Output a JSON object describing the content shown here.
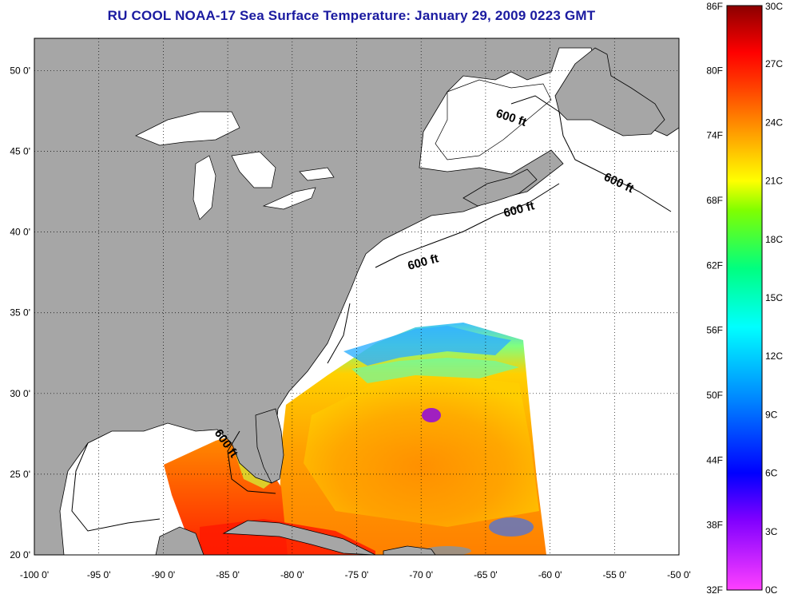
{
  "title": "RU COOL  NOAA-17  Sea Surface Temperature:  January 29, 2009 0223 GMT",
  "map": {
    "lon_labels": [
      "-100 0'",
      "-95 0'",
      "-90 0'",
      "-85 0'",
      "-80 0'",
      "-75 0'",
      "-70 0'",
      "-65 0'",
      "-60 0'",
      "-55 0'",
      "-50 0'"
    ],
    "lat_labels": [
      "50 0'",
      "45 0'",
      "40 0'",
      "35 0'",
      "30 0'",
      "25 0'",
      "20 0'"
    ],
    "lon_range": [
      -100,
      -50
    ],
    "lat_range": [
      20,
      52
    ],
    "grid": "dotted",
    "land_color": "#a6a6a6",
    "contour_labels": [
      "600 ft",
      "600 ft",
      "600 ft",
      "600 ft",
      "600 ft"
    ]
  },
  "colorbar": {
    "fahrenheit_labels": [
      "86F",
      "80F",
      "74F",
      "68F",
      "62F",
      "56F",
      "50F",
      "44F",
      "38F",
      "32F"
    ],
    "celsius_labels": [
      "30C",
      "27C",
      "24C",
      "21C",
      "18C",
      "15C",
      "12C",
      "9C",
      "6C",
      "3C",
      "0C"
    ],
    "colors": [
      "#ff40ff",
      "#8000ff",
      "#0000ff",
      "#0080ff",
      "#00ffff",
      "#00ff80",
      "#80ff00",
      "#ffff00",
      "#ffa000",
      "#ff4000",
      "#ff0000",
      "#8b0000"
    ]
  }
}
